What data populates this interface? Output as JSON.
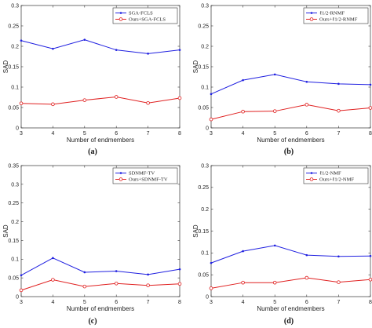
{
  "figure_labels": [
    "(a)",
    "(b)",
    "(c)",
    "(d)"
  ],
  "colors": {
    "blue": "#1f1fe0",
    "red": "#e02020"
  },
  "chart_data": [
    {
      "type": "line",
      "xlabel": "Number of endmembers",
      "ylabel": "SAD",
      "xlim": [
        3,
        8
      ],
      "ylim": [
        0,
        0.3
      ],
      "x": [
        3,
        4,
        5,
        6,
        7,
        8
      ],
      "xticks": [
        "3",
        "4",
        "5",
        "6",
        "7",
        "8"
      ],
      "yticks": [
        "0",
        "0.05",
        "0.1",
        "0.15",
        "0.2",
        "0.25",
        "0.3"
      ],
      "legend_position": "top-right",
      "series": [
        {
          "name": "SGA-FCLS",
          "color": "#1f1fe0",
          "marker": "dot",
          "values": [
            0.214,
            0.194,
            0.216,
            0.191,
            0.182,
            0.191
          ]
        },
        {
          "name": "Ours+SGA-FCLS",
          "color": "#e02020",
          "marker": "circle",
          "values": [
            0.06,
            0.058,
            0.068,
            0.076,
            0.061,
            0.073
          ]
        }
      ]
    },
    {
      "type": "line",
      "xlabel": "Number of endmembers",
      "ylabel": "SAD",
      "xlim": [
        3,
        8
      ],
      "ylim": [
        0,
        0.3
      ],
      "x": [
        3,
        4,
        5,
        6,
        7,
        8
      ],
      "xticks": [
        "3",
        "4",
        "5",
        "6",
        "7",
        "8"
      ],
      "yticks": [
        "0",
        "0.05",
        "0.1",
        "0.15",
        "0.2",
        "0.25",
        "0.3"
      ],
      "legend_position": "top-right",
      "series": [
        {
          "name": "ℓ1/2-RNMF",
          "color": "#1f1fe0",
          "marker": "dot",
          "values": [
            0.083,
            0.117,
            0.131,
            0.113,
            0.108,
            0.106
          ]
        },
        {
          "name": "Ours+ℓ1/2-RNMF",
          "color": "#e02020",
          "marker": "circle",
          "values": [
            0.021,
            0.04,
            0.041,
            0.057,
            0.042,
            0.049
          ]
        }
      ]
    },
    {
      "type": "line",
      "xlabel": "Number of endmembers",
      "ylabel": "SAD",
      "xlim": [
        3,
        8
      ],
      "ylim": [
        0,
        0.35
      ],
      "x": [
        3,
        4,
        5,
        6,
        7,
        8
      ],
      "xticks": [
        "3",
        "4",
        "5",
        "6",
        "7",
        "8"
      ],
      "yticks": [
        "0",
        "0.05",
        "0.1",
        "0.15",
        "0.2",
        "0.25",
        "0.3",
        "0.35"
      ],
      "legend_position": "top-right",
      "series": [
        {
          "name": "SDNMF-TV",
          "color": "#1f1fe0",
          "marker": "dot",
          "values": [
            0.057,
            0.103,
            0.065,
            0.068,
            0.059,
            0.073
          ]
        },
        {
          "name": "Ours+SDNMF-TV",
          "color": "#e02020",
          "marker": "circle",
          "values": [
            0.017,
            0.045,
            0.027,
            0.035,
            0.03,
            0.034
          ]
        }
      ]
    },
    {
      "type": "line",
      "xlabel": "Number of endmembers",
      "ylabel": "SAD",
      "xlim": [
        3,
        8
      ],
      "ylim": [
        0,
        0.3
      ],
      "x": [
        3,
        4,
        5,
        6,
        7,
        8
      ],
      "xticks": [
        "3",
        "4",
        "5",
        "6",
        "7",
        "8"
      ],
      "yticks": [
        "0",
        "0.05",
        "0.1",
        "0.15",
        "0.2",
        "0.25",
        "0.3"
      ],
      "legend_position": "top-right",
      "series": [
        {
          "name": "ℓ1/2-NMF",
          "color": "#1f1fe0",
          "marker": "dot",
          "values": [
            0.077,
            0.104,
            0.117,
            0.095,
            0.092,
            0.093
          ]
        },
        {
          "name": "Ours+ℓ1/2-NMF",
          "color": "#e02020",
          "marker": "circle",
          "values": [
            0.019,
            0.032,
            0.032,
            0.043,
            0.033,
            0.039
          ]
        }
      ]
    }
  ]
}
